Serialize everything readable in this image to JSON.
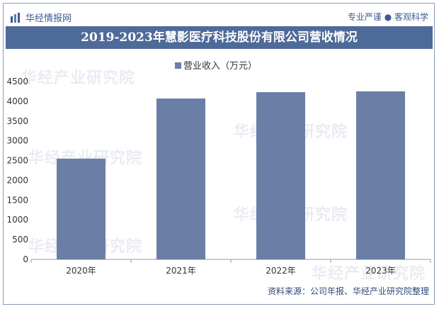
{
  "header": {
    "brand": "华经情报网",
    "slogan": "专业严谨 ● 客观科学"
  },
  "title": "2019-2023年慧影医疗科技股份有限公司营收情况",
  "source": "资料来源：公司年报、华经产业研究院整理",
  "watermark": "华经产业研究院",
  "colors": {
    "bar": "#6b7fa6",
    "title_bg": "#4e6a99"
  },
  "chart_data": {
    "type": "bar",
    "legend_position": "top",
    "categories": [
      "2020年",
      "2021年",
      "2022年",
      "2023年"
    ],
    "series": [
      {
        "name": "营业收入（万元）",
        "values": [
          2550,
          4070,
          4230,
          4250
        ]
      }
    ],
    "y_ticks": [
      "0",
      "500",
      "1000",
      "1500",
      "2000",
      "2500",
      "3000",
      "3500",
      "4000",
      "4500"
    ],
    "ylim": [
      0,
      4500
    ],
    "grid": false
  }
}
